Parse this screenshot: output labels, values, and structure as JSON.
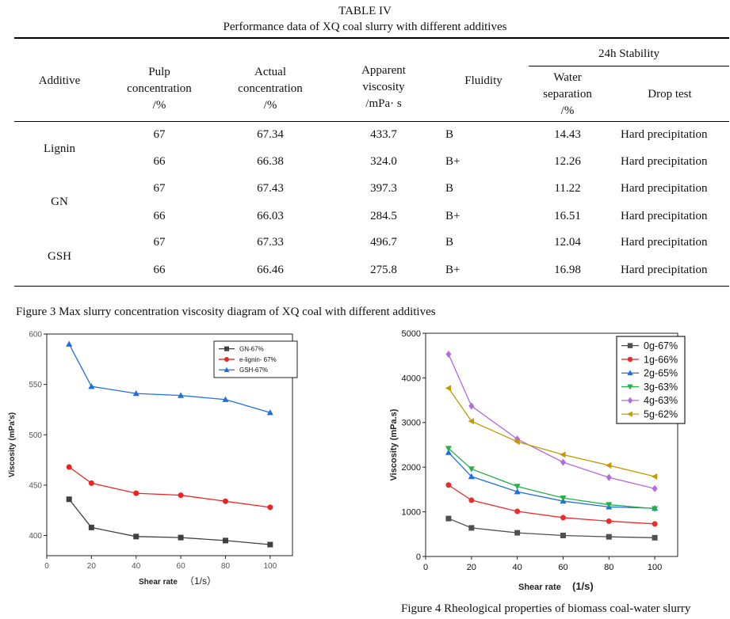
{
  "table": {
    "label": "TABLE IV",
    "caption": "Performance data of XQ coal slurry with different additives",
    "headers": {
      "additive": "Additive",
      "pulp": [
        "Pulp",
        "concentration",
        "/%"
      ],
      "actual": [
        "Actual",
        "concentration",
        "/%"
      ],
      "apparent": [
        "Apparent",
        "viscosity",
        "/mPa· s"
      ],
      "fluidity": "Fluidity",
      "stability": "24h Stability",
      "water": [
        "Water",
        "separation",
        "/%"
      ],
      "drop": "Drop test"
    },
    "groups": [
      {
        "additive": "Lignin",
        "rows": [
          {
            "pulp": "67",
            "actual": "67.34",
            "viscosity": "433.7",
            "fluidity": "B",
            "water": "14.43",
            "drop": "Hard precipitation"
          },
          {
            "pulp": "66",
            "actual": "66.38",
            "viscosity": "324.0",
            "fluidity": "B+",
            "water": "12.26",
            "drop": "Hard precipitation"
          }
        ]
      },
      {
        "additive": "GN",
        "rows": [
          {
            "pulp": "67",
            "actual": "67.43",
            "viscosity": "397.3",
            "fluidity": "B",
            "water": "11.22",
            "drop": "Hard precipitation"
          },
          {
            "pulp": "66",
            "actual": "66.03",
            "viscosity": "284.5",
            "fluidity": "B+",
            "water": "16.51",
            "drop": "Hard precipitation"
          }
        ]
      },
      {
        "additive": "GSH",
        "rows": [
          {
            "pulp": "67",
            "actual": "67.33",
            "viscosity": "496.7",
            "fluidity": "B",
            "water": "12.04",
            "drop": "Hard precipitation"
          },
          {
            "pulp": "66",
            "actual": "66.46",
            "viscosity": "275.8",
            "fluidity": "B+",
            "water": "16.98",
            "drop": "Hard precipitation"
          }
        ]
      }
    ]
  },
  "figure3_caption": "Figure 3 Max slurry concentration viscosity diagram of XQ coal with different additives",
  "figure4_caption": "Figure 4 Rheological properties of biomass coal-water slurry",
  "chart_data": [
    {
      "type": "line",
      "title": "",
      "xlabel": "Shear rate",
      "xlabel_unit": "（1/s）",
      "ylabel": "Viscosity (mPa's)",
      "xlim": [
        0,
        110
      ],
      "ylim": [
        380,
        600
      ],
      "x_ticks": [
        "0",
        "20",
        "40",
        "60",
        "80",
        "100"
      ],
      "y_ticks": [
        "400",
        "450",
        "500",
        "550",
        "600"
      ],
      "legend_position": "top-right",
      "x": [
        10,
        20,
        40,
        60,
        80,
        100
      ],
      "series": [
        {
          "name": "GN-67%",
          "color": "#404040",
          "marker": "square",
          "values": [
            436,
            408,
            399,
            398,
            395,
            391
          ]
        },
        {
          "name": "e-lignin- 67%",
          "color": "#ee2222",
          "marker": "circle",
          "values": [
            468,
            452,
            442,
            440,
            434,
            428
          ]
        },
        {
          "name": "GSH-67%",
          "color": "#1f6fe0",
          "marker": "triangle",
          "values": [
            590,
            548,
            541,
            539,
            535,
            522
          ]
        }
      ]
    },
    {
      "type": "line",
      "title": "",
      "xlabel": "Shear rate",
      "xlabel_unit": "(1/s)",
      "ylabel": "Viscosity (mPa.s)",
      "xlim": [
        0,
        110
      ],
      "ylim": [
        0,
        5000
      ],
      "x_ticks": [
        "0",
        "20",
        "40",
        "60",
        "80",
        "100"
      ],
      "y_ticks": [
        "0",
        "1000",
        "2000",
        "3000",
        "4000",
        "5000"
      ],
      "legend_position": "top-right",
      "x": [
        10,
        20,
        40,
        60,
        80,
        100
      ],
      "series": [
        {
          "name": "0g-67%",
          "color": "#505050",
          "marker": "square",
          "values": [
            850,
            640,
            530,
            470,
            440,
            420
          ]
        },
        {
          "name": "1g-66%",
          "color": "#ee2b2b",
          "marker": "circle",
          "values": [
            1600,
            1260,
            1010,
            870,
            790,
            730
          ]
        },
        {
          "name": "2g-65%",
          "color": "#1f6fe0",
          "marker": "triangle",
          "values": [
            2330,
            1790,
            1450,
            1240,
            1110,
            1080
          ]
        },
        {
          "name": "3g-63%",
          "color": "#23b24a",
          "marker": "triangle-down",
          "values": [
            2420,
            1960,
            1570,
            1310,
            1160,
            1070
          ]
        },
        {
          "name": "4g-63%",
          "color": "#b568e0",
          "marker": "diamond",
          "values": [
            4530,
            3370,
            2630,
            2110,
            1770,
            1520
          ]
        },
        {
          "name": "5g-62%",
          "color": "#c49a00",
          "marker": "triangle-left",
          "values": [
            3770,
            3030,
            2570,
            2280,
            2040,
            1790
          ]
        }
      ]
    }
  ]
}
